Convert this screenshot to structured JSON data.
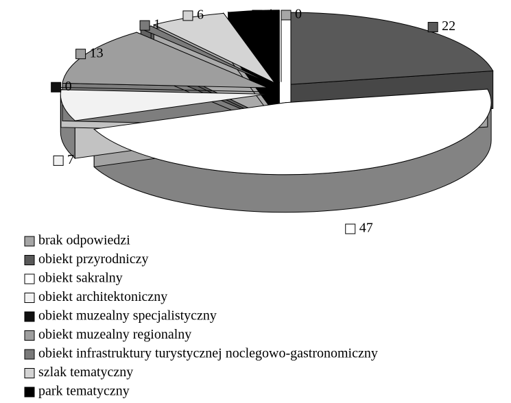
{
  "chart_data": {
    "type": "pie",
    "categories": [
      "brak odpowiedzi",
      "obiekt przyrodniczy",
      "obiekt sakralny",
      "obiekt architektoniczny",
      "obiekt muzealny specjalistyczny",
      "obiekt muzealny regionalny",
      "obiekt infrastruktury turystycznej noclegowo-gastronomiczny",
      "szlak tematyczny",
      "park tematyczny"
    ],
    "values": [
      0,
      22,
      47,
      7,
      0,
      13,
      1,
      6,
      4
    ],
    "colors": [
      "#a6a6a6",
      "#595959",
      "#ffffff",
      "#f2f2f2",
      "#111111",
      "#9e9e9e",
      "#7a7a7a",
      "#d4d4d4",
      "#000000"
    ],
    "legend": "bottom-left"
  }
}
